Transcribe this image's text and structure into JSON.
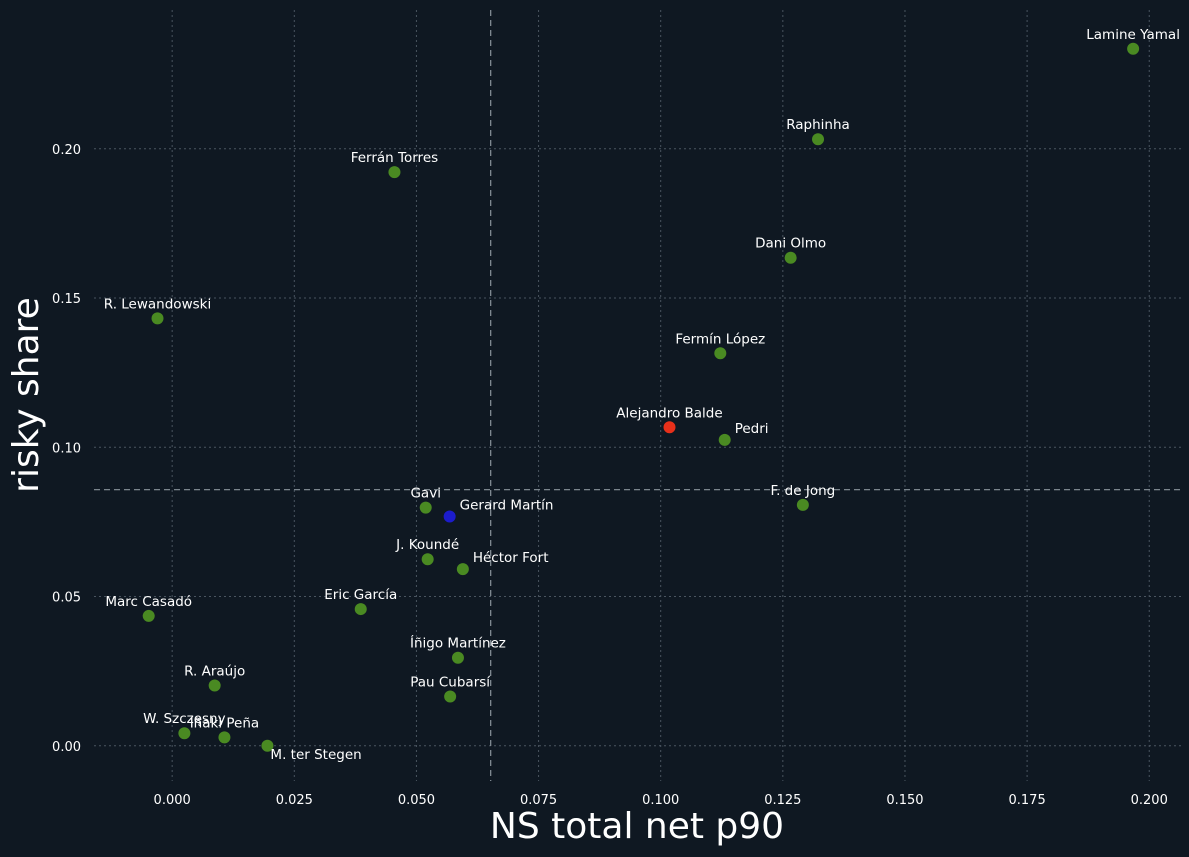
{
  "chart_data": {
    "type": "scatter",
    "xlabel": "NS total net p90",
    "ylabel": "risky share",
    "xlim": [
      -0.016,
      0.2065
    ],
    "ylim": [
      -0.0118,
      0.2465
    ],
    "x_ticks": [
      0.0,
      0.025,
      0.05,
      0.075,
      0.1,
      0.125,
      0.15,
      0.175,
      0.2
    ],
    "x_tick_labels": [
      "0.000",
      "0.025",
      "0.050",
      "0.075",
      "0.100",
      "0.125",
      "0.150",
      "0.175",
      "0.200"
    ],
    "y_ticks": [
      0.0,
      0.05,
      0.1,
      0.15,
      0.2
    ],
    "y_tick_labels": [
      "0.00",
      "0.05",
      "0.10",
      "0.15",
      "0.20"
    ],
    "grid": true,
    "reference_lines": {
      "x": 0.0652,
      "y": 0.0858
    },
    "colors": {
      "background": "#0f1822",
      "default_point": "#4a8a22",
      "highlight_red": "#e8301a",
      "highlight_blue": "#1c1ccc",
      "text": "#ffffff"
    },
    "points": [
      {
        "name": "Lamine Yamal",
        "x": 0.1967,
        "y": 0.2335,
        "color": "#4a8a22",
        "label_pos": "above"
      },
      {
        "name": "Raphinha",
        "x": 0.1322,
        "y": 0.2032,
        "color": "#4a8a22",
        "label_pos": "above"
      },
      {
        "name": "Ferrán Torres",
        "x": 0.0455,
        "y": 0.1922,
        "color": "#4a8a22",
        "label_pos": "above"
      },
      {
        "name": "Dani Olmo",
        "x": 0.1266,
        "y": 0.1635,
        "color": "#4a8a22",
        "label_pos": "above"
      },
      {
        "name": "R. Lewandowski",
        "x": -0.003,
        "y": 0.1432,
        "color": "#4a8a22",
        "label_pos": "above"
      },
      {
        "name": "Fermín López",
        "x": 0.1122,
        "y": 0.1315,
        "color": "#4a8a22",
        "label_pos": "above"
      },
      {
        "name": "Alejandro Balde",
        "x": 0.1018,
        "y": 0.1067,
        "color": "#e8301a",
        "label_pos": "above"
      },
      {
        "name": "Pedri",
        "x": 0.1131,
        "y": 0.1025,
        "color": "#4a8a22",
        "label_pos": "above-right"
      },
      {
        "name": "F. de Jong",
        "x": 0.1291,
        "y": 0.0807,
        "color": "#4a8a22",
        "label_pos": "above"
      },
      {
        "name": "Gavi",
        "x": 0.0519,
        "y": 0.0798,
        "color": "#4a8a22",
        "label_pos": "above"
      },
      {
        "name": "Gerard Martín",
        "x": 0.0568,
        "y": 0.0768,
        "color": "#1c1ccc",
        "label_pos": "above-right"
      },
      {
        "name": "J. Koundé",
        "x": 0.0523,
        "y": 0.0625,
        "color": "#4a8a22",
        "label_pos": "above"
      },
      {
        "name": "Héctor Fort",
        "x": 0.0595,
        "y": 0.0592,
        "color": "#4a8a22",
        "label_pos": "above-right"
      },
      {
        "name": "Eric García",
        "x": 0.0386,
        "y": 0.0458,
        "color": "#4a8a22",
        "label_pos": "above"
      },
      {
        "name": "Marc Casadó",
        "x": -0.0048,
        "y": 0.0435,
        "color": "#4a8a22",
        "label_pos": "above"
      },
      {
        "name": "Íñigo Martínez",
        "x": 0.0585,
        "y": 0.0295,
        "color": "#4a8a22",
        "label_pos": "above"
      },
      {
        "name": "R. Araújo",
        "x": 0.0087,
        "y": 0.0202,
        "color": "#4a8a22",
        "label_pos": "above"
      },
      {
        "name": "Pau Cubarsí",
        "x": 0.0569,
        "y": 0.0165,
        "color": "#4a8a22",
        "label_pos": "above"
      },
      {
        "name": "W. Szczęsny",
        "x": 0.0025,
        "y": 0.0042,
        "color": "#4a8a22",
        "label_pos": "above"
      },
      {
        "name": "Iñaki Peña",
        "x": 0.0107,
        "y": 0.0028,
        "color": "#4a8a22",
        "label_pos": "above"
      },
      {
        "name": "M. ter Stegen",
        "x": 0.0195,
        "y": 0.0,
        "color": "#4a8a22",
        "label_pos": "below-right"
      }
    ]
  }
}
